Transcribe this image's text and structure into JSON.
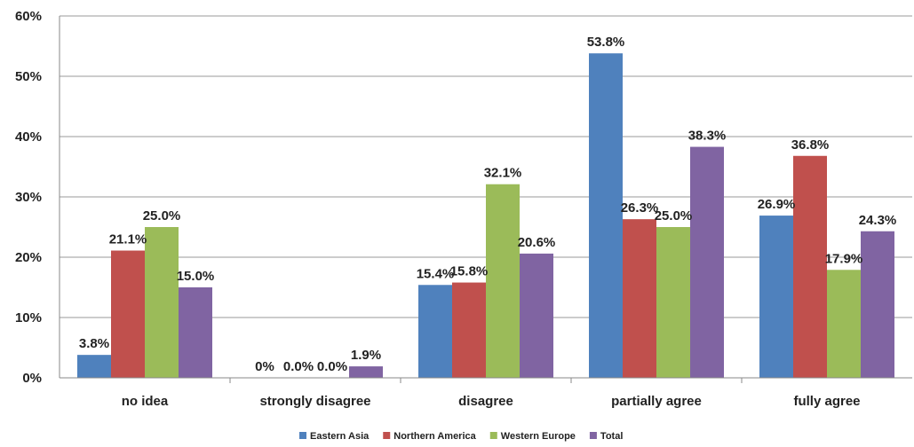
{
  "chart_data": {
    "type": "bar",
    "title": "",
    "xlabel": "",
    "ylabel": "",
    "ylim": [
      0,
      60
    ],
    "yticks": [
      "0%",
      "10%",
      "20%",
      "30%",
      "40%",
      "50%",
      "60%"
    ],
    "categories": [
      "no idea",
      "strongly disagree",
      "disagree",
      "partially agree",
      "fully agree"
    ],
    "series": [
      {
        "name": "Eastern Asia",
        "color": "#4F81BD",
        "values": [
          3.8,
          0,
          15.4,
          53.8,
          26.9
        ],
        "labels": [
          "3.8%",
          "0%",
          "15.4%",
          "53.8%",
          "26.9%"
        ]
      },
      {
        "name": "Northern America",
        "color": "#C0504D",
        "values": [
          21.1,
          0,
          15.8,
          26.3,
          36.8
        ],
        "labels": [
          "21.1%",
          "0.0%",
          "15.8%",
          "26.3%",
          "36.8%"
        ]
      },
      {
        "name": "Western Europe",
        "color": "#9BBB59",
        "values": [
          25.0,
          0,
          32.1,
          25.0,
          17.9
        ],
        "labels": [
          "25.0%",
          "0.0%",
          "32.1%",
          "25.0%",
          "17.9%"
        ]
      },
      {
        "name": "Total",
        "color": "#8064A2",
        "values": [
          15.0,
          1.9,
          20.6,
          38.3,
          24.3
        ],
        "labels": [
          "15.0%",
          "1.9%",
          "20.6%",
          "38.3%",
          "24.3%"
        ]
      }
    ],
    "grid": true,
    "legend_position": "bottom"
  }
}
